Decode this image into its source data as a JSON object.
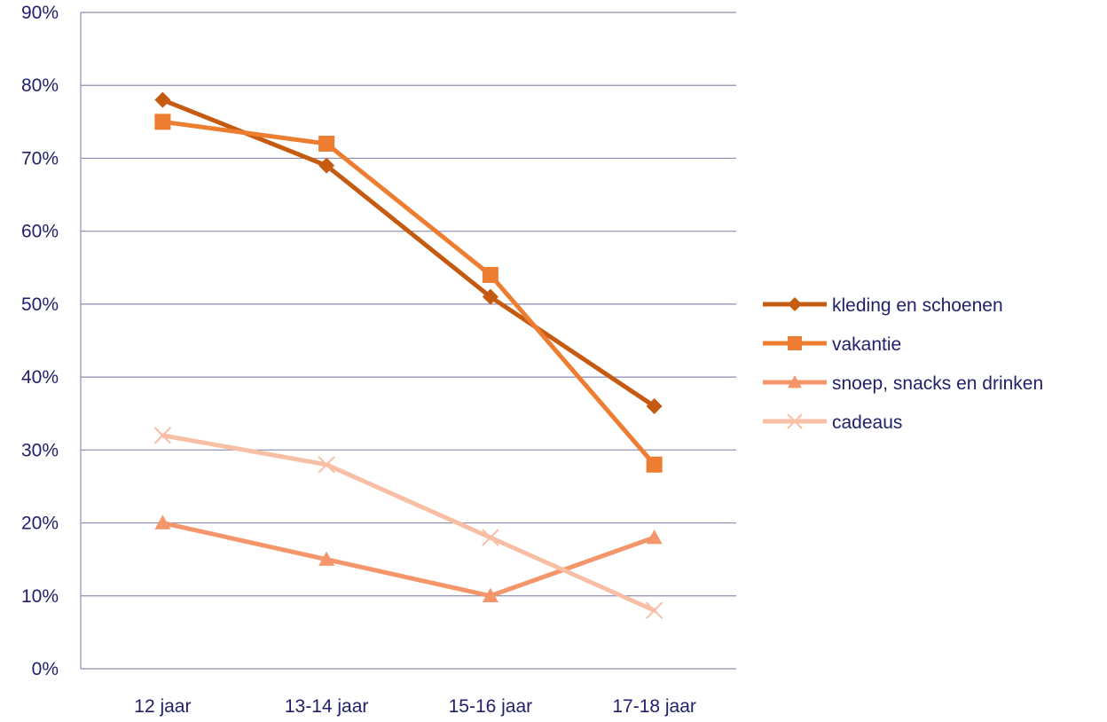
{
  "chart_data": {
    "type": "line",
    "title": "",
    "xlabel": "",
    "ylabel": "",
    "categories": [
      "12 jaar",
      "13-14 jaar",
      "15-16 jaar",
      "17-18 jaar"
    ],
    "y_ticks": [
      "0%",
      "10%",
      "20%",
      "30%",
      "40%",
      "50%",
      "60%",
      "70%",
      "80%",
      "90%"
    ],
    "ylim": [
      0,
      90
    ],
    "y_unit": "%",
    "grid": true,
    "legend_position": "right",
    "series": [
      {
        "name": "kleding en schoenen",
        "values": [
          78,
          69,
          51,
          36
        ],
        "color": "#c55a11",
        "marker": "diamond"
      },
      {
        "name": "vakantie",
        "values": [
          75,
          72,
          54,
          28
        ],
        "color": "#ed7d31",
        "marker": "square"
      },
      {
        "name": "snoep, snacks en drinken",
        "values": [
          20,
          15,
          10,
          18
        ],
        "color": "#f4956a",
        "marker": "triangle"
      },
      {
        "name": "cadeaus",
        "values": [
          32,
          28,
          18,
          8
        ],
        "color": "#f8bfa5",
        "marker": "x"
      }
    ]
  }
}
